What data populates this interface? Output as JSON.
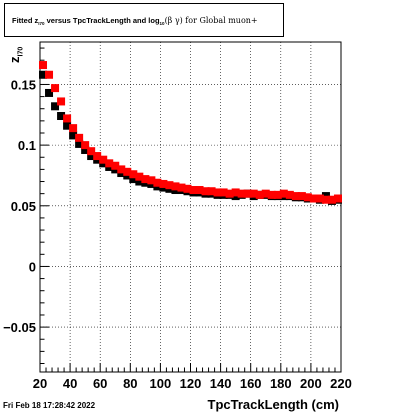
{
  "chart_data": {
    "type": "scatter",
    "title_parts": [
      "Fitted  z",
      "I70",
      "  versus TpcTrackLength and log",
      "10",
      "(β  γ) for Global muon+"
    ],
    "xlabel": "TpcTrackLength (cm)",
    "ylabel_parts": [
      "z",
      "I70"
    ],
    "xlim": [
      20,
      220
    ],
    "ylim": [
      -0.087,
      0.185
    ],
    "x_ticks": [
      20,
      40,
      60,
      80,
      100,
      120,
      140,
      160,
      180,
      200,
      220
    ],
    "y_ticks": [
      -0.05,
      0,
      0.05,
      0.1,
      0.15
    ],
    "y_tick_labels": [
      "−0.05",
      "0",
      "0.05",
      "0.1",
      "0.15"
    ],
    "grid": true,
    "series": [
      {
        "color": "#000000",
        "x": [
          22,
          26,
          30,
          34,
          38,
          42,
          46,
          50,
          54,
          58,
          62,
          66,
          70,
          74,
          78,
          82,
          86,
          90,
          94,
          98,
          102,
          106,
          110,
          114,
          118,
          122,
          126,
          130,
          134,
          138,
          142,
          146,
          150,
          154,
          158,
          162,
          166,
          170,
          174,
          178,
          182,
          186,
          190,
          194,
          198,
          202,
          206,
          210,
          214,
          218
        ],
        "y": [
          0.158,
          0.143,
          0.132,
          0.124,
          0.116,
          0.108,
          0.101,
          0.096,
          0.091,
          0.088,
          0.085,
          0.082,
          0.08,
          0.077,
          0.075,
          0.072,
          0.07,
          0.069,
          0.068,
          0.066,
          0.065,
          0.064,
          0.063,
          0.063,
          0.062,
          0.061,
          0.061,
          0.06,
          0.06,
          0.059,
          0.059,
          0.059,
          0.058,
          0.059,
          0.06,
          0.058,
          0.059,
          0.059,
          0.058,
          0.058,
          0.058,
          0.058,
          0.057,
          0.057,
          0.056,
          0.056,
          0.055,
          0.058,
          0.054,
          0.055
        ]
      },
      {
        "color": "#ff0000",
        "x": [
          22,
          26,
          30,
          34,
          38,
          42,
          46,
          50,
          54,
          58,
          62,
          66,
          70,
          74,
          78,
          82,
          86,
          90,
          94,
          98,
          102,
          106,
          110,
          114,
          118,
          122,
          126,
          130,
          134,
          138,
          142,
          146,
          150,
          154,
          158,
          162,
          166,
          170,
          174,
          178,
          182,
          186,
          190,
          194,
          198,
          202,
          206,
          210,
          214,
          218
        ],
        "y": [
          0.166,
          0.158,
          0.147,
          0.136,
          0.122,
          0.114,
          0.106,
          0.1,
          0.095,
          0.091,
          0.088,
          0.085,
          0.083,
          0.08,
          0.078,
          0.076,
          0.074,
          0.072,
          0.071,
          0.069,
          0.068,
          0.067,
          0.066,
          0.065,
          0.064,
          0.063,
          0.063,
          0.062,
          0.062,
          0.061,
          0.061,
          0.06,
          0.061,
          0.06,
          0.06,
          0.06,
          0.059,
          0.06,
          0.059,
          0.059,
          0.06,
          0.059,
          0.058,
          0.058,
          0.057,
          0.056,
          0.056,
          0.055,
          0.055,
          0.056
        ]
      }
    ]
  },
  "footer": {
    "timestamp": "Fri Feb 18 17:28:42 2022"
  }
}
